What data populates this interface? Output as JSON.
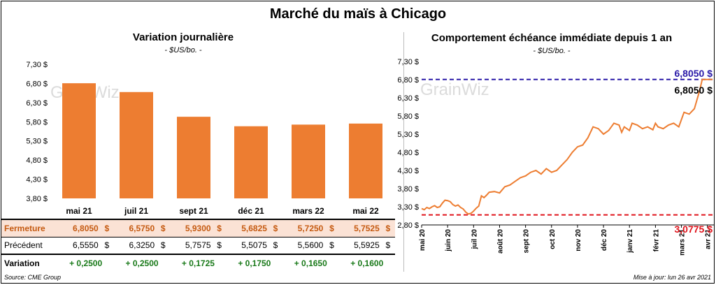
{
  "title": "Marché du maïs à Chicago",
  "left": {
    "subtitle": "Variation  journalière",
    "unit": "- $US/bo. -",
    "watermark": "GrainWiz"
  },
  "right": {
    "subtitle": "Comportement  échéance immédiate depuis 1 an",
    "unit": "- $US/bo. -",
    "watermark": "GrainWiz",
    "ref_high_label": "6,8050 $",
    "ref_low_label": "3,0775 $",
    "last_label": "6,8050 $"
  },
  "table": {
    "rows": [
      {
        "label": "Fermeture",
        "cells": [
          {
            "v": "6,8050",
            "c": "$"
          },
          {
            "v": "6,5750",
            "c": "$"
          },
          {
            "v": "5,9300",
            "c": "$"
          },
          {
            "v": "5,6825",
            "c": "$"
          },
          {
            "v": "5,7250",
            "c": "$"
          },
          {
            "v": "5,7525",
            "c": "$"
          }
        ]
      },
      {
        "label": "Précédent",
        "cells": [
          {
            "v": "6,5550",
            "c": "$"
          },
          {
            "v": "6,3250",
            "c": "$"
          },
          {
            "v": "5,7575",
            "c": "$"
          },
          {
            "v": "5,5075",
            "c": "$"
          },
          {
            "v": "5,5600",
            "c": "$"
          },
          {
            "v": "5,5925",
            "c": "$"
          }
        ]
      }
    ],
    "variation_label": "Variation",
    "variations": [
      "+ 0,2500",
      "+ 0,2500",
      "+ 0,1725",
      "+ 0,1750",
      "+ 0,1650",
      "+ 0,1600"
    ]
  },
  "source": "Source: CME Group",
  "updated": "Mise à jour: lun 26 avr 2021",
  "colors": {
    "bar": "#ed7d31",
    "line": "#ed7d31",
    "high": "#2a1aa8",
    "low": "#e0141c"
  },
  "chart_data": [
    {
      "type": "bar",
      "title": "Variation  journalière",
      "ylabel": "$US/bo.",
      "categories": [
        "mai 21",
        "juil 21",
        "sept 21",
        "déc 21",
        "mars 22",
        "mai 22"
      ],
      "values": [
        6.805,
        6.575,
        5.93,
        5.6825,
        5.725,
        5.7525
      ],
      "ylim": [
        3.8,
        7.3
      ],
      "yticks": [
        3.8,
        4.3,
        4.8,
        5.3,
        5.8,
        6.3,
        6.8,
        7.3
      ],
      "ytick_labels": [
        "3,80 $",
        "4,30 $",
        "4,80 $",
        "5,30 $",
        "5,80 $",
        "6,30 $",
        "6,80 $",
        "7,30 $"
      ],
      "grid": false
    },
    {
      "type": "line",
      "title": "Comportement  échéance immédiate depuis 1 an",
      "ylabel": "$US/bo.",
      "ylim": [
        2.8,
        7.3
      ],
      "yticks": [
        2.8,
        3.3,
        3.8,
        4.3,
        4.8,
        5.3,
        5.8,
        6.3,
        6.8,
        7.3
      ],
      "ytick_labels": [
        "2,80 $",
        "3,30 $",
        "3,80 $",
        "4,30 $",
        "4,80 $",
        "5,30 $",
        "5,80 $",
        "6,30 $",
        "6,80 $",
        "7,30 $"
      ],
      "x_labels": [
        "mai 20",
        "juin 20",
        "juil 20",
        "août 20",
        "sept 20",
        "oct 20",
        "nov 20",
        "déc 20",
        "janv 21",
        "févr 21",
        "mars 21",
        "avr 21"
      ],
      "reference_lines": [
        {
          "value": 6.805,
          "label": "6,8050 $"
        },
        {
          "value": 3.0775,
          "label": "3,0775 $"
        }
      ],
      "x": [
        0,
        0.1,
        0.2,
        0.3,
        0.4,
        0.5,
        0.6,
        0.7,
        0.8,
        0.9,
        1.0,
        1.1,
        1.2,
        1.3,
        1.4,
        1.5,
        1.6,
        1.7,
        1.8,
        1.9,
        2.0,
        2.1,
        2.2,
        2.3,
        2.4,
        2.5,
        2.6,
        2.8,
        3.0,
        3.2,
        3.4,
        3.6,
        3.8,
        4.0,
        4.2,
        4.4,
        4.6,
        4.8,
        5.0,
        5.2,
        5.4,
        5.6,
        5.8,
        6.0,
        6.2,
        6.4,
        6.6,
        6.8,
        7.0,
        7.2,
        7.4,
        7.6,
        7.7,
        7.8,
        7.9,
        8.0,
        8.1,
        8.3,
        8.5,
        8.7,
        8.9,
        9.0,
        9.1,
        9.3,
        9.5,
        9.7,
        9.9,
        10.1,
        10.3,
        10.5,
        10.7,
        10.8,
        10.9,
        11.0,
        11.1,
        11.2
      ],
      "values": [
        3.25,
        3.22,
        3.28,
        3.25,
        3.3,
        3.33,
        3.28,
        3.3,
        3.4,
        3.48,
        3.47,
        3.44,
        3.36,
        3.32,
        3.35,
        3.28,
        3.24,
        3.15,
        3.1,
        3.12,
        3.18,
        3.26,
        3.32,
        3.6,
        3.55,
        3.62,
        3.7,
        3.72,
        3.68,
        3.85,
        3.9,
        4.0,
        4.1,
        4.15,
        4.25,
        4.3,
        4.2,
        4.35,
        4.25,
        4.3,
        4.45,
        4.6,
        4.8,
        4.95,
        5.0,
        5.2,
        5.5,
        5.45,
        5.3,
        5.4,
        5.6,
        5.55,
        5.35,
        5.5,
        5.45,
        5.4,
        5.6,
        5.55,
        5.45,
        5.5,
        5.42,
        5.6,
        5.5,
        5.45,
        5.55,
        5.6,
        5.5,
        5.9,
        5.85,
        6.0,
        6.5,
        6.805,
        6.805,
        6.805,
        6.805,
        6.805
      ]
    }
  ]
}
